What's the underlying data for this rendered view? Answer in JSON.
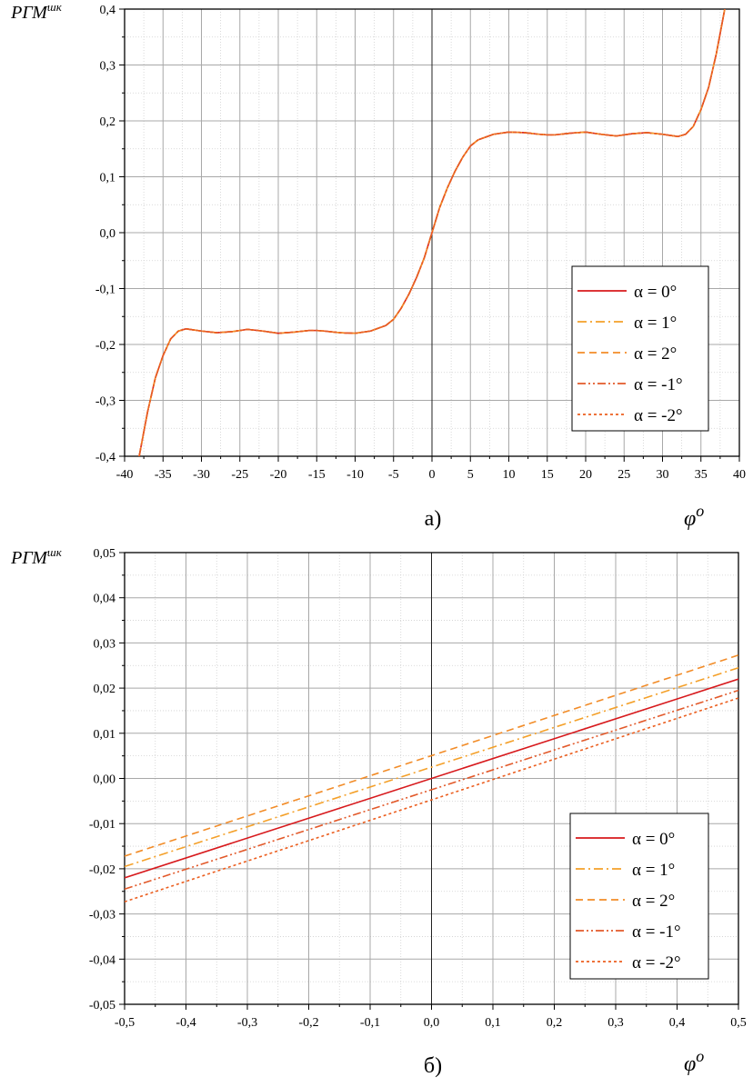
{
  "chart_data": [
    {
      "type": "line",
      "panel_label": "а)",
      "ylabel": "РГМ",
      "ylabel_sup": "шк",
      "xlabel": "φ",
      "xlabel_sup": "o",
      "xlim": [
        -40,
        40
      ],
      "ylim": [
        -0.4,
        0.4
      ],
      "x_ticks": [
        -40,
        -35,
        -30,
        -25,
        -20,
        -15,
        -10,
        -5,
        0,
        5,
        10,
        15,
        20,
        25,
        30,
        35,
        40
      ],
      "x_tick_labels": [
        "-40",
        "-35",
        "-30",
        "-25",
        "-20",
        "-15",
        "-10",
        "-5",
        "0",
        "5",
        "10",
        "15",
        "20",
        "25",
        "30",
        "35",
        "40"
      ],
      "y_ticks": [
        -0.4,
        -0.3,
        -0.2,
        -0.1,
        0.0,
        0.1,
        0.2,
        0.3,
        0.4
      ],
      "y_tick_labels": [
        "-0,4",
        "-0,3",
        "-0,2",
        "-0,1",
        "0,0",
        "0,1",
        "0,2",
        "0,3",
        "0,4"
      ],
      "grid": true,
      "legend_position": "bottom-right",
      "series": [
        {
          "name": "α = 0°",
          "color": "#d7191c",
          "dash": "solid",
          "x": [
            -38.1,
            -37,
            -36,
            -35,
            -34,
            -33,
            -32,
            -30,
            -28,
            -26,
            -24,
            -22,
            -20,
            -18,
            -16,
            -15,
            -14,
            -12,
            -10,
            -8,
            -6,
            -5,
            -4,
            -3,
            -2,
            -1,
            0,
            1,
            2,
            3,
            4,
            5,
            6,
            8,
            10,
            12,
            14,
            15,
            16,
            18,
            20,
            22,
            24,
            26,
            28,
            30,
            32,
            33,
            34,
            35,
            36,
            37,
            38.1
          ],
          "y": [
            -0.4,
            -0.32,
            -0.26,
            -0.22,
            -0.19,
            -0.176,
            -0.172,
            -0.176,
            -0.179,
            -0.177,
            -0.173,
            -0.176,
            -0.18,
            -0.178,
            -0.175,
            -0.175,
            -0.176,
            -0.179,
            -0.18,
            -0.176,
            -0.166,
            -0.155,
            -0.135,
            -0.11,
            -0.08,
            -0.045,
            0.0,
            0.045,
            0.08,
            0.11,
            0.135,
            0.155,
            0.166,
            0.176,
            0.18,
            0.179,
            0.176,
            0.175,
            0.175,
            0.178,
            0.18,
            0.176,
            0.173,
            0.177,
            0.179,
            0.176,
            0.172,
            0.176,
            0.19,
            0.22,
            0.26,
            0.32,
            0.4
          ]
        },
        {
          "name": "α = 1°",
          "color": "#f4a029",
          "dash": "dashdot",
          "same_as": 0
        },
        {
          "name": "α = 2°",
          "color": "#f28c28",
          "dash": "dash",
          "same_as": 0
        },
        {
          "name": "α = -1°",
          "color": "#e2592a",
          "dash": "dashdotdot",
          "same_as": 0
        },
        {
          "name": "α = -2°",
          "color": "#eb5e1f",
          "dash": "dot",
          "same_as": 0
        }
      ]
    },
    {
      "type": "line",
      "panel_label": "б)",
      "ylabel": "РГМ",
      "ylabel_sup": "шк",
      "xlabel": "φ",
      "xlabel_sup": "o",
      "xlim": [
        -0.5,
        0.5
      ],
      "ylim": [
        -0.05,
        0.05
      ],
      "x_ticks": [
        -0.5,
        -0.4,
        -0.3,
        -0.2,
        -0.1,
        0.0,
        0.1,
        0.2,
        0.3,
        0.4,
        0.5
      ],
      "x_tick_labels": [
        "-0,5",
        "-0,4",
        "-0,3",
        "-0,2",
        "-0,1",
        "0,0",
        "0,1",
        "0,2",
        "0,3",
        "0,4",
        "0,5"
      ],
      "y_ticks": [
        -0.05,
        -0.04,
        -0.03,
        -0.02,
        -0.01,
        0.0,
        0.01,
        0.02,
        0.03,
        0.04,
        0.05
      ],
      "y_tick_labels": [
        "-0,05",
        "-0,04",
        "-0,03",
        "-0,02",
        "-0,01",
        "0,00",
        "0,01",
        "0,02",
        "0,03",
        "0,04",
        "0,05"
      ],
      "grid": true,
      "legend_position": "bottom-right",
      "series": [
        {
          "name": "α = 0°",
          "color": "#d7191c",
          "dash": "solid",
          "x": [
            -0.5,
            0.5
          ],
          "y": [
            -0.022,
            0.022
          ]
        },
        {
          "name": "α = 1°",
          "color": "#f4a029",
          "dash": "dashdot",
          "x": [
            -0.5,
            0.5
          ],
          "y": [
            -0.0195,
            0.0245
          ]
        },
        {
          "name": "α = 2°",
          "color": "#f28c28",
          "dash": "dash",
          "x": [
            -0.5,
            0.5
          ],
          "y": [
            -0.0172,
            0.0273
          ]
        },
        {
          "name": "α = -1°",
          "color": "#e2592a",
          "dash": "dashdotdot",
          "x": [
            -0.5,
            0.5
          ],
          "y": [
            -0.0245,
            0.0195
          ]
        },
        {
          "name": "α = -2°",
          "color": "#eb5e1f",
          "dash": "dot",
          "x": [
            -0.5,
            0.5
          ],
          "y": [
            -0.0273,
            0.0178
          ]
        }
      ]
    }
  ]
}
